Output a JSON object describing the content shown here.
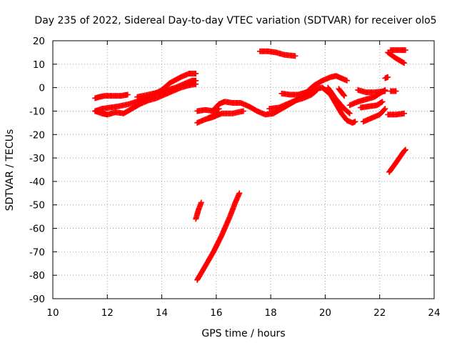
{
  "chart_data": {
    "type": "scatter",
    "title": "Day 235 of 2022, Sidereal Day-to-day VTEC variation (SDTVAR) for receiver olo5",
    "xlabel": "GPS time / hours",
    "ylabel": "SDTVAR / TECUs",
    "xlim": [
      10,
      24
    ],
    "ylim": [
      -90,
      20
    ],
    "xticks": [
      "10",
      "12",
      "14",
      "16",
      "18",
      "20",
      "22",
      "24"
    ],
    "yticks": [
      "20",
      "10",
      "0",
      "-10",
      "-20",
      "-30",
      "-40",
      "-50",
      "-60",
      "-70",
      "-80",
      "-90"
    ],
    "grid": true,
    "marker": "plus",
    "color": "#ff0000",
    "series": [
      {
        "points": [
          [
            11.55,
            -4.5
          ],
          [
            11.7,
            -4
          ],
          [
            11.9,
            -3.5
          ],
          [
            12.2,
            -3.5
          ],
          [
            12.5,
            -3.5
          ],
          [
            12.75,
            -3
          ]
        ]
      },
      {
        "points": [
          [
            11.55,
            -10
          ],
          [
            11.8,
            -9
          ],
          [
            12.1,
            -8.5
          ],
          [
            12.4,
            -8
          ],
          [
            12.8,
            -7
          ],
          [
            13.2,
            -5.5
          ],
          [
            13.6,
            -3.5
          ],
          [
            14.0,
            -1
          ],
          [
            14.3,
            2
          ],
          [
            14.7,
            4.5
          ],
          [
            15.0,
            6
          ],
          [
            15.25,
            6
          ]
        ]
      },
      {
        "points": [
          [
            11.55,
            -10
          ],
          [
            11.8,
            -11
          ],
          [
            12.0,
            -11.5
          ],
          [
            12.3,
            -10.5
          ],
          [
            12.6,
            -11
          ],
          [
            12.9,
            -9
          ],
          [
            13.2,
            -7
          ],
          [
            13.5,
            -5.5
          ],
          [
            13.8,
            -4.5
          ],
          [
            14.1,
            -3
          ],
          [
            14.4,
            -1.5
          ],
          [
            14.7,
            0
          ],
          [
            15.0,
            1
          ],
          [
            15.25,
            1.5
          ]
        ]
      },
      {
        "points": [
          [
            13.1,
            -4
          ],
          [
            13.5,
            -3
          ],
          [
            13.9,
            -2
          ],
          [
            14.2,
            -1
          ],
          [
            14.5,
            0
          ],
          [
            14.8,
            1.5
          ],
          [
            15.1,
            3
          ],
          [
            15.25,
            3
          ]
        ]
      },
      {
        "points": [
          [
            15.3,
            -10
          ],
          [
            15.6,
            -9.5
          ],
          [
            15.9,
            -10
          ],
          [
            16.1,
            -9
          ]
        ]
      },
      {
        "points": [
          [
            15.3,
            -15
          ],
          [
            15.6,
            -13.5
          ],
          [
            15.9,
            -12.5
          ],
          [
            16.2,
            -11
          ],
          [
            16.6,
            -11
          ],
          [
            17.0,
            -10
          ]
        ]
      },
      {
        "points": [
          [
            15.7,
            -13
          ],
          [
            15.9,
            -12
          ],
          [
            16.1,
            -11
          ]
        ]
      },
      {
        "points": [
          [
            15.9,
            -9.5
          ],
          [
            16.1,
            -7
          ],
          [
            16.3,
            -6
          ],
          [
            16.6,
            -6.5
          ],
          [
            16.9,
            -6.5
          ],
          [
            17.2,
            -8
          ],
          [
            17.5,
            -10
          ],
          [
            17.8,
            -11.5
          ],
          [
            18.1,
            -11
          ],
          [
            18.4,
            -9
          ],
          [
            18.7,
            -7
          ],
          [
            19.0,
            -5
          ],
          [
            19.3,
            -2
          ],
          [
            19.6,
            -0.5
          ],
          [
            19.9,
            0
          ],
          [
            20.2,
            -3
          ],
          [
            20.4,
            -7
          ],
          [
            20.6,
            -11
          ],
          [
            20.8,
            -14
          ],
          [
            21.0,
            -15
          ],
          [
            21.1,
            -14.5
          ]
        ]
      },
      {
        "points": [
          [
            17.95,
            -9
          ],
          [
            18.3,
            -8.5
          ],
          [
            18.6,
            -7
          ],
          [
            18.9,
            -5.5
          ],
          [
            19.2,
            -4.5
          ],
          [
            19.5,
            -3
          ],
          [
            19.7,
            -1
          ]
        ]
      },
      {
        "points": [
          [
            18.4,
            -2.5
          ],
          [
            18.7,
            -3
          ],
          [
            19.0,
            -3
          ],
          [
            19.3,
            -2
          ],
          [
            19.5,
            -1
          ]
        ]
      },
      {
        "points": [
          [
            19.4,
            -1
          ],
          [
            19.6,
            1
          ],
          [
            19.9,
            3
          ],
          [
            20.2,
            4.5
          ],
          [
            20.4,
            5
          ],
          [
            20.6,
            4
          ],
          [
            20.8,
            3
          ]
        ]
      },
      {
        "points": [
          [
            20.1,
            0
          ],
          [
            20.4,
            -5
          ],
          [
            20.7,
            -9
          ],
          [
            20.9,
            -11
          ]
        ]
      },
      {
        "points": [
          [
            20.5,
            -0.5
          ],
          [
            20.6,
            -2
          ],
          [
            20.7,
            -3.5
          ]
        ]
      },
      {
        "points": [
          [
            20.9,
            -7.5
          ],
          [
            21.2,
            -6
          ],
          [
            21.5,
            -5
          ],
          [
            21.8,
            -4
          ],
          [
            22.2,
            -1
          ]
        ]
      },
      {
        "points": [
          [
            21.2,
            -1
          ],
          [
            21.5,
            -2
          ],
          [
            21.8,
            -2
          ],
          [
            22.2,
            -1.5
          ]
        ]
      },
      {
        "points": [
          [
            21.3,
            -8.5
          ],
          [
            21.6,
            -8
          ],
          [
            21.9,
            -7.5
          ],
          [
            22.1,
            -6
          ]
        ]
      },
      {
        "points": [
          [
            21.4,
            -14.5
          ],
          [
            21.7,
            -13
          ],
          [
            22.0,
            -11.5
          ],
          [
            22.2,
            -9
          ]
        ]
      },
      {
        "points": [
          [
            22.3,
            -11.5
          ],
          [
            22.6,
            -11.5
          ],
          [
            22.9,
            -11
          ]
        ]
      },
      {
        "points": [
          [
            22.4,
            -1.5
          ],
          [
            22.6,
            -1.5
          ]
        ]
      },
      {
        "points": [
          [
            22.2,
            4
          ],
          [
            22.3,
            4.5
          ]
        ]
      },
      {
        "points": [
          [
            22.3,
            15
          ],
          [
            22.6,
            12.5
          ],
          [
            22.9,
            10.5
          ]
        ]
      },
      {
        "points": [
          [
            22.4,
            16
          ],
          [
            22.7,
            16
          ],
          [
            22.95,
            16
          ]
        ]
      },
      {
        "points": [
          [
            17.6,
            15.5
          ],
          [
            17.9,
            15.5
          ],
          [
            18.2,
            15
          ],
          [
            18.5,
            14
          ],
          [
            18.9,
            13.5
          ]
        ]
      },
      {
        "points": [
          [
            15.25,
            -56
          ],
          [
            15.35,
            -52
          ],
          [
            15.45,
            -49
          ]
        ]
      },
      {
        "points": [
          [
            15.3,
            -82
          ],
          [
            15.6,
            -76
          ],
          [
            15.9,
            -70
          ],
          [
            16.2,
            -63
          ],
          [
            16.5,
            -55
          ],
          [
            16.7,
            -49
          ],
          [
            16.85,
            -45
          ]
        ]
      },
      {
        "points": [
          [
            22.35,
            -36
          ],
          [
            22.6,
            -32
          ],
          [
            22.9,
            -27
          ],
          [
            22.95,
            -26.5
          ]
        ]
      }
    ]
  }
}
